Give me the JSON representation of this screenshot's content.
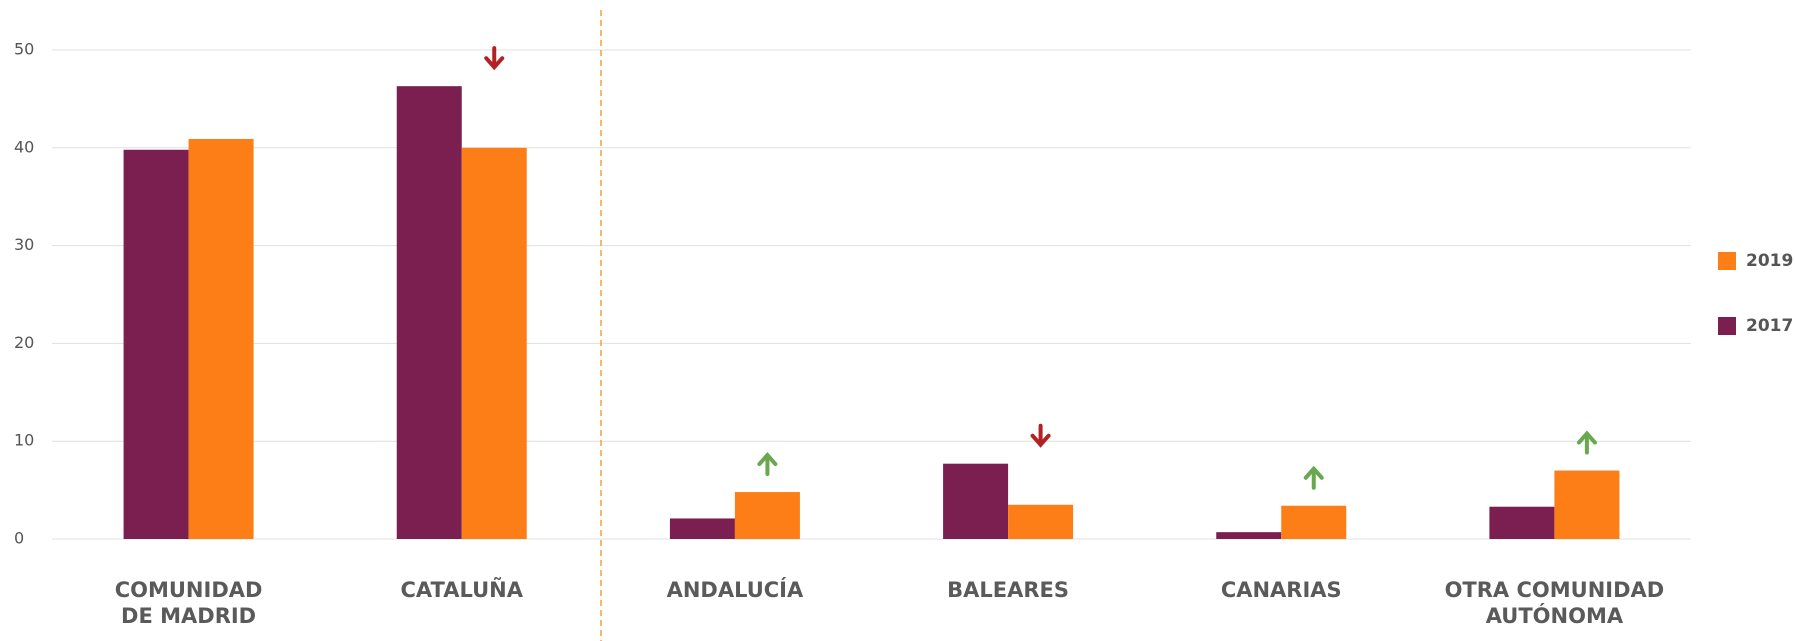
{
  "chart_data": {
    "type": "bar",
    "categories": [
      "COMUNIDAD\nDE MADRID",
      "CATALUÑA",
      "ANDALUCÍA",
      "BALEARES",
      "CANARIAS",
      "OTRA COMUNIDAD\nAUTÓNOMA"
    ],
    "series": [
      {
        "name": "2017",
        "color": "#7a1f4f",
        "values": [
          39.8,
          46.3,
          2.1,
          7.7,
          0.7,
          3.3
        ]
      },
      {
        "name": "2019",
        "color": "#fd7e16",
        "values": [
          40.9,
          40.0,
          4.8,
          3.5,
          3.4,
          7.0
        ]
      }
    ],
    "indicators": [
      null,
      "down",
      "up",
      "down",
      "up",
      "up"
    ],
    "ylim": [
      0,
      50
    ],
    "yticks": [
      0,
      10,
      20,
      30,
      40,
      50
    ],
    "grid": true
  }
}
